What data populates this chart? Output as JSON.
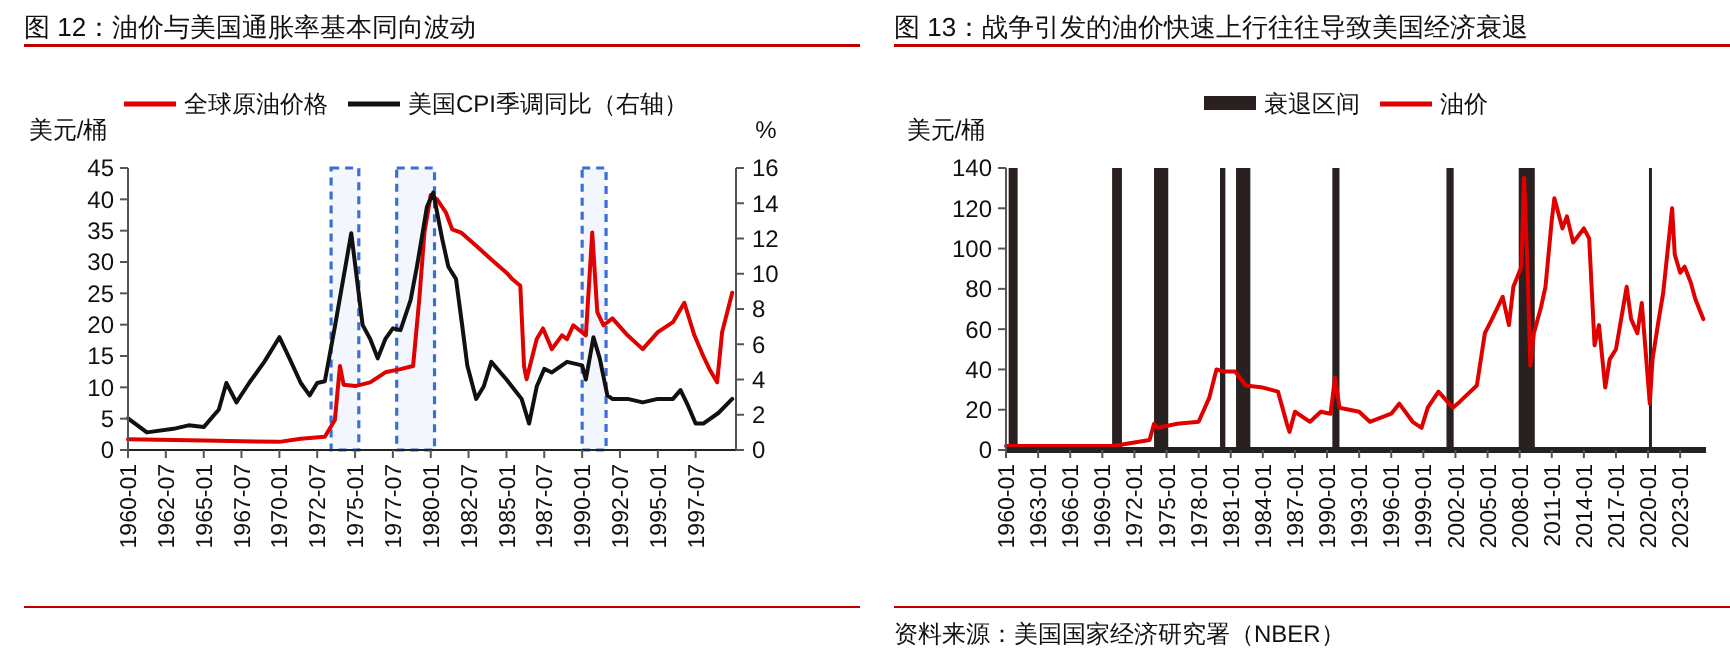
{
  "chart_data": [
    {
      "type": "line",
      "title": "图 12：油价与美国通胀率基本同向波动",
      "ylabel": "美元/桶",
      "y2label": "%",
      "xlim": [
        "1960-01",
        "2000-03"
      ],
      "xticks": [
        "1960-01",
        "1962-07",
        "1965-01",
        "1967-07",
        "1970-01",
        "1972-07",
        "1975-01",
        "1977-07",
        "1980-01",
        "1982-07",
        "1985-01",
        "1987-07",
        "1990-01",
        "1992-07",
        "1995-01",
        "1997-07"
      ],
      "ylim": [
        0,
        45
      ],
      "yticks": [
        0,
        5,
        10,
        15,
        20,
        25,
        30,
        35,
        40,
        45
      ],
      "y2lim": [
        0,
        16
      ],
      "y2ticks": [
        0,
        2,
        4,
        6,
        8,
        10,
        12,
        14,
        16
      ],
      "legend": "top",
      "grid": false,
      "bands": [
        {
          "axis": "x",
          "from": "1973-06",
          "to": "1975-04",
          "color": "#3a6fd8"
        },
        {
          "axis": "x",
          "from": "1977-10",
          "to": "1980-04",
          "color": "#3a6fd8"
        },
        {
          "axis": "x",
          "from": "1990-01",
          "to": "1991-08",
          "color": "#3a6fd8"
        }
      ],
      "series": [
        {
          "name": "全球原油价格",
          "color": "#e00000",
          "x": [
            "1960-01",
            "1965-01",
            "1970-01",
            "1971-06",
            "1973-01",
            "1973-09",
            "1974-01",
            "1974-04",
            "1975-01",
            "1976-01",
            "1977-01",
            "1978-01",
            "1978-11",
            "1979-04",
            "1979-08",
            "1980-01",
            "1980-06",
            "1981-01",
            "1981-06",
            "1982-01",
            "1983-01",
            "1984-01",
            "1985-01",
            "1985-06",
            "1985-12",
            "1986-03",
            "1986-05",
            "1987-01",
            "1987-06",
            "1988-01",
            "1988-09",
            "1989-01",
            "1989-06",
            "1990-04",
            "1990-09",
            "1991-01",
            "1991-06",
            "1992-01",
            "1993-01",
            "1994-01",
            "1995-01",
            "1996-01",
            "1996-10",
            "1997-06",
            "1998-01",
            "1998-06",
            "1998-12",
            "1999-04",
            "1999-12"
          ],
          "values": [
            1.7,
            1.5,
            1.3,
            1.8,
            2.1,
            4.8,
            13.4,
            10.4,
            10.2,
            10.8,
            12.4,
            12.9,
            13.4,
            24.2,
            34.7,
            40.7,
            40,
            37.9,
            35.2,
            34.7,
            32.6,
            30.4,
            28.3,
            27.2,
            26.2,
            13.4,
            11.3,
            17.7,
            19.4,
            16.1,
            18.3,
            17.7,
            19.9,
            18.3,
            34.7,
            22,
            19.9,
            21,
            18.3,
            16.1,
            18.8,
            20.4,
            23.5,
            18.3,
            15,
            12.9,
            10.8,
            18.8,
            25.1
          ]
        },
        {
          "name": "美国CPI季调同比（右轴）",
          "color": "#111111",
          "axis": "y2",
          "x": [
            "1960-01",
            "1961-04",
            "1963-01",
            "1964-01",
            "1965-01",
            "1966-01",
            "1966-07",
            "1967-03",
            "1968-01",
            "1969-01",
            "1970-01",
            "1970-09",
            "1971-06",
            "1972-01",
            "1972-07",
            "1973-01",
            "1973-09",
            "1974-10",
            "1975-07",
            "1976-01",
            "1976-07",
            "1977-01",
            "1977-07",
            "1978-01",
            "1978-09",
            "1979-02",
            "1979-10",
            "1980-03",
            "1980-10",
            "1981-03",
            "1981-09",
            "1982-02",
            "1982-06",
            "1983-01",
            "1983-07",
            "1984-01",
            "1985-01",
            "1986-01",
            "1986-07",
            "1987-01",
            "1987-07",
            "1988-01",
            "1989-01",
            "1990-01",
            "1990-04",
            "1990-10",
            "1991-03",
            "1991-09",
            "1992-01",
            "1993-01",
            "1994-01",
            "1995-01",
            "1996-01",
            "1996-07",
            "1997-01",
            "1997-07",
            "1998-01",
            "1999-01",
            "1999-12"
          ],
          "values": [
            1.8,
            1.0,
            1.2,
            1.4,
            1.3,
            2.3,
            3.8,
            2.7,
            3.8,
            5,
            6.4,
            5.2,
            3.8,
            3.1,
            3.8,
            3.9,
            7,
            12.3,
            7.1,
            6.3,
            5.2,
            6.3,
            6.9,
            6.8,
            8.5,
            10.4,
            13.8,
            14.6,
            12,
            10.4,
            9.7,
            7,
            4.8,
            2.9,
            3.6,
            5,
            4,
            2.9,
            1.5,
            3.6,
            4.6,
            4.4,
            5,
            4.8,
            4,
            6.4,
            5.2,
            3.1,
            2.9,
            2.9,
            2.7,
            2.9,
            2.9,
            3.4,
            2.5,
            1.5,
            1.5,
            2.1,
            2.9
          ]
        }
      ]
    },
    {
      "type": "line",
      "title": "图 13：战争引发的油价快速上行往往导致美国经济衰退",
      "ylabel": "美元/桶",
      "xlim": [
        "1960-01",
        "2025-06"
      ],
      "xticks": [
        "1960-01",
        "1963-01",
        "1966-01",
        "1969-01",
        "1972-01",
        "1975-01",
        "1978-01",
        "1981-01",
        "1984-01",
        "1987-01",
        "1990-01",
        "1993-01",
        "1996-01",
        "1999-01",
        "2002-01",
        "2005-01",
        "2008-01",
        "2011-01",
        "2014-01",
        "2017-01",
        "2020-01",
        "2023-01"
      ],
      "ylim": [
        0,
        140
      ],
      "yticks": [
        0,
        20,
        40,
        60,
        80,
        100,
        120,
        140
      ],
      "legend": "top",
      "grid": false,
      "annotations": [
        "资料来源：美国国家经济研究署（NBER）"
      ],
      "bands": [
        {
          "axis": "x",
          "from": "1960-04",
          "to": "1961-02",
          "color": "#2b2020",
          "label": "衰退区间"
        },
        {
          "axis": "x",
          "from": "1969-12",
          "to": "1970-11",
          "color": "#2b2020"
        },
        {
          "axis": "x",
          "from": "1973-11",
          "to": "1975-03",
          "color": "#2b2020"
        },
        {
          "axis": "x",
          "from": "1980-01",
          "to": "1980-07",
          "color": "#2b2020"
        },
        {
          "axis": "x",
          "from": "1981-07",
          "to": "1982-11",
          "color": "#2b2020"
        },
        {
          "axis": "x",
          "from": "1990-07",
          "to": "1991-03",
          "color": "#2b2020"
        },
        {
          "axis": "x",
          "from": "2001-03",
          "to": "2001-11",
          "color": "#2b2020"
        },
        {
          "axis": "x",
          "from": "2007-12",
          "to": "2009-06",
          "color": "#2b2020"
        },
        {
          "axis": "x",
          "from": "2020-02",
          "to": "2020-04",
          "color": "#2b2020"
        }
      ],
      "series": [
        {
          "name": "油价",
          "color": "#e00000",
          "x": [
            "1960-01",
            "1970-01",
            "1973-06",
            "1973-11",
            "1974-03",
            "1976-01",
            "1978-01",
            "1979-01",
            "1979-09",
            "1980-06",
            "1981-06",
            "1982-06",
            "1984-01",
            "1985-06",
            "1986-04",
            "1986-07",
            "1987-01",
            "1988-06",
            "1989-06",
            "1990-05",
            "1990-10",
            "1991-03",
            "1993-01",
            "1994-01",
            "1996-01",
            "1996-10",
            "1998-01",
            "1998-11",
            "1999-06",
            "2000-06",
            "2001-10",
            "2002-06",
            "2003-01",
            "2004-01",
            "2004-10",
            "2005-06",
            "2006-06",
            "2007-01",
            "2007-06",
            "2008-03",
            "2008-06",
            "2008-10",
            "2009-01",
            "2009-05",
            "2010-01",
            "2010-06",
            "2011-01",
            "2011-04",
            "2012-01",
            "2012-06",
            "2013-01",
            "2014-01",
            "2014-07",
            "2015-01",
            "2015-06",
            "2016-01",
            "2016-06",
            "2017-01",
            "2018-01",
            "2018-06",
            "2019-01",
            "2019-06",
            "2020-03",
            "2020-06",
            "2021-01",
            "2021-06",
            "2022-04",
            "2022-07",
            "2023-01",
            "2023-06",
            "2024-01",
            "2024-06",
            "2025-03"
          ],
          "values": [
            2,
            2,
            5,
            13,
            11,
            13,
            14,
            26,
            40,
            39,
            39,
            32,
            31,
            29,
            13,
            9,
            19,
            14,
            19,
            18,
            36,
            21,
            19,
            14,
            18,
            23,
            14,
            11,
            21,
            29,
            21,
            24,
            27,
            32,
            58,
            65,
            76,
            62,
            81,
            91,
            135,
            88,
            42,
            58,
            71,
            81,
            114,
            125,
            110,
            116,
            103,
            110,
            105,
            52,
            62,
            31,
            45,
            50,
            81,
            65,
            58,
            73,
            23,
            45,
            65,
            78,
            120,
            97,
            88,
            91,
            83,
            75,
            65
          ]
        }
      ]
    }
  ]
}
